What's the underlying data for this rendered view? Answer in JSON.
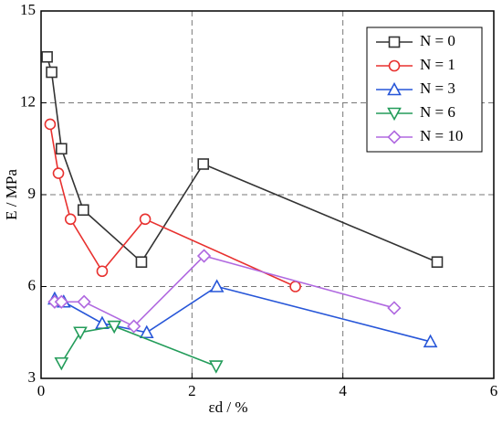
{
  "chart_data": {
    "type": "line",
    "xlabel": "εd / %",
    "ylabel": "E / MPa",
    "xlim": [
      0,
      6
    ],
    "xticks": [
      0,
      2,
      4,
      6
    ],
    "ylim": [
      3,
      15
    ],
    "yticks": [
      3,
      6,
      9,
      12,
      15
    ],
    "grid": true,
    "legend": "upper right",
    "series": [
      {
        "name": "N = 0",
        "color": "#333333",
        "marker": "square",
        "x": [
          0.08,
          0.14,
          0.27,
          0.56,
          1.33,
          2.15,
          5.25
        ],
        "values": [
          13.5,
          13.0,
          10.5,
          8.5,
          6.8,
          10.0,
          6.8
        ]
      },
      {
        "name": "N = 1",
        "color": "#e8312f",
        "marker": "circle",
        "x": [
          0.12,
          0.23,
          0.39,
          0.81,
          1.38,
          3.37
        ],
        "values": [
          11.3,
          9.7,
          8.2,
          6.5,
          8.2,
          6.0
        ]
      },
      {
        "name": "N = 3",
        "color": "#2756d8",
        "marker": "triangle-up",
        "x": [
          0.18,
          0.3,
          0.81,
          1.4,
          2.33,
          5.16
        ],
        "values": [
          5.6,
          5.5,
          4.8,
          4.5,
          6.0,
          4.2
        ]
      },
      {
        "name": "N = 6",
        "color": "#239c5a",
        "marker": "triangle-down",
        "x": [
          0.27,
          0.52,
          0.97,
          2.32
        ],
        "values": [
          3.5,
          4.5,
          4.7,
          3.4
        ]
      },
      {
        "name": "N = 10",
        "color": "#b069e0",
        "marker": "diamond",
        "x": [
          0.18,
          0.27,
          0.57,
          1.23,
          2.16,
          4.68
        ],
        "values": [
          5.5,
          5.5,
          5.5,
          4.7,
          7.0,
          5.3
        ]
      }
    ]
  }
}
